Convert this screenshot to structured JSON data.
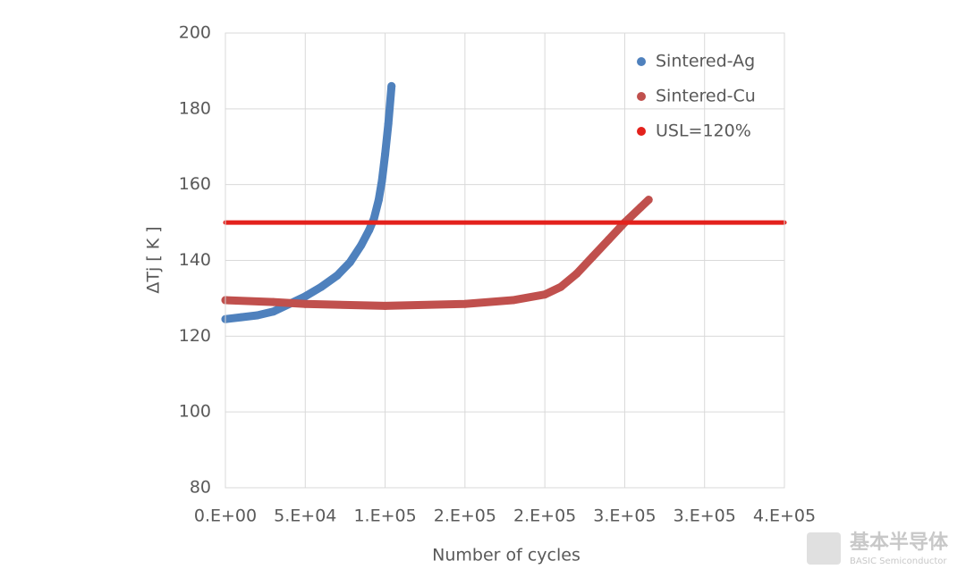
{
  "chart_data": {
    "type": "scatter",
    "x_label": "Number of cycles",
    "y_label": "ΔTj [ K ]",
    "xlim": [
      0,
      350000
    ],
    "xticks": [
      {
        "value": 0,
        "label": "0.E+00"
      },
      {
        "value": 50000,
        "label": "5.E+04"
      },
      {
        "value": 100000,
        "label": "1.E+05"
      },
      {
        "value": 150000,
        "label": "2.E+05"
      },
      {
        "value": 200000,
        "label": "2.E+05"
      },
      {
        "value": 250000,
        "label": "3.E+05"
      },
      {
        "value": 300000,
        "label": "3.E+05"
      },
      {
        "value": 350000,
        "label": "4.E+05"
      }
    ],
    "ylim": [
      80,
      200
    ],
    "yticks": [
      80,
      100,
      120,
      140,
      160,
      180,
      200
    ],
    "grid": true,
    "legend": "top-right",
    "series": [
      {
        "name": "Sintered-Ag",
        "color": "#4f81bd",
        "style": "points",
        "x": [
          0,
          10000,
          20000,
          30000,
          40000,
          50000,
          60000,
          70000,
          78000,
          85000,
          90000,
          93000,
          96000,
          98000,
          100000,
          102000,
          104000
        ],
        "values": [
          124.5,
          125,
          125.5,
          126.5,
          128.5,
          130.5,
          133,
          136,
          139.5,
          144,
          148,
          151,
          156,
          161,
          168,
          176,
          186
        ]
      },
      {
        "name": "Sintered-Cu",
        "color": "#c0504d",
        "style": "points",
        "x": [
          0,
          30000,
          50000,
          100000,
          150000,
          180000,
          200000,
          210000,
          220000,
          230000,
          240000,
          250000,
          260000,
          265000
        ],
        "values": [
          129.5,
          129,
          128.5,
          128,
          128.5,
          129.5,
          131,
          133,
          136.5,
          141,
          145.5,
          150,
          154,
          156
        ]
      },
      {
        "name": "USL=120%",
        "color": "#e3211c",
        "style": "line",
        "x": [
          0,
          350000
        ],
        "values": [
          150,
          150
        ]
      }
    ]
  },
  "watermark": {
    "brand": "基本半导体",
    "subtitle": "BASIC Semiconductor"
  }
}
